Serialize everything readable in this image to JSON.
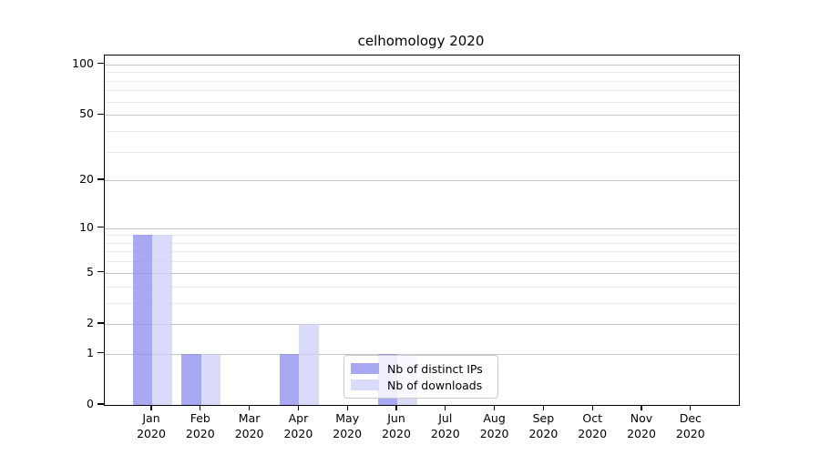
{
  "title": "celhomology 2020",
  "chart_data": {
    "type": "bar",
    "title": "celhomology 2020",
    "categories": [
      "Jan 2020",
      "Feb 2020",
      "Mar 2020",
      "Apr 2020",
      "May 2020",
      "Jun 2020",
      "Jul 2020",
      "Aug 2020",
      "Sep 2020",
      "Oct 2020",
      "Nov 2020",
      "Dec 2020"
    ],
    "x_tick_months": [
      "Jan",
      "Feb",
      "Mar",
      "Apr",
      "May",
      "Jun",
      "Jul",
      "Aug",
      "Sep",
      "Oct",
      "Nov",
      "Dec"
    ],
    "x_tick_year": "2020",
    "series": [
      {
        "name": "Nb of distinct IPs",
        "swatch_color": "#a9a9f2",
        "bar_color": "rgba(136,136,238,0.72)",
        "values": [
          9,
          1,
          0,
          1,
          0,
          1,
          0,
          0,
          0,
          0,
          0,
          0
        ]
      },
      {
        "name": "Nb of downloads",
        "swatch_color": "#dadaf9",
        "bar_color": "rgba(204,204,247,0.72)",
        "values": [
          9,
          1,
          0,
          2,
          0,
          1,
          0,
          0,
          0,
          0,
          0,
          0
        ]
      }
    ],
    "xlabel": "",
    "ylabel": "",
    "y_scale": "log10(1+v)",
    "y_major_ticks": [
      0,
      1,
      2,
      5,
      10,
      20,
      50,
      100
    ],
    "y_minor_ticks": [
      3,
      4,
      6,
      7,
      8,
      9,
      30,
      40,
      60,
      70,
      80,
      90
    ],
    "ylim": [
      0,
      114
    ],
    "grid": "horizontal",
    "legend_position": "bottom-center-inside"
  },
  "legend": {
    "items": [
      {
        "label": "Nb of distinct IPs",
        "color": "#a9a9f2"
      },
      {
        "label": "Nb of downloads",
        "color": "#dadaf9"
      }
    ]
  },
  "colors": {
    "background": "#ffffff",
    "axis": "#000000",
    "grid_major": "#c6c6c6",
    "grid_minor": "#ececec",
    "bar_distinct_ips": "#a9a9f2",
    "bar_downloads": "#dadaf9"
  }
}
